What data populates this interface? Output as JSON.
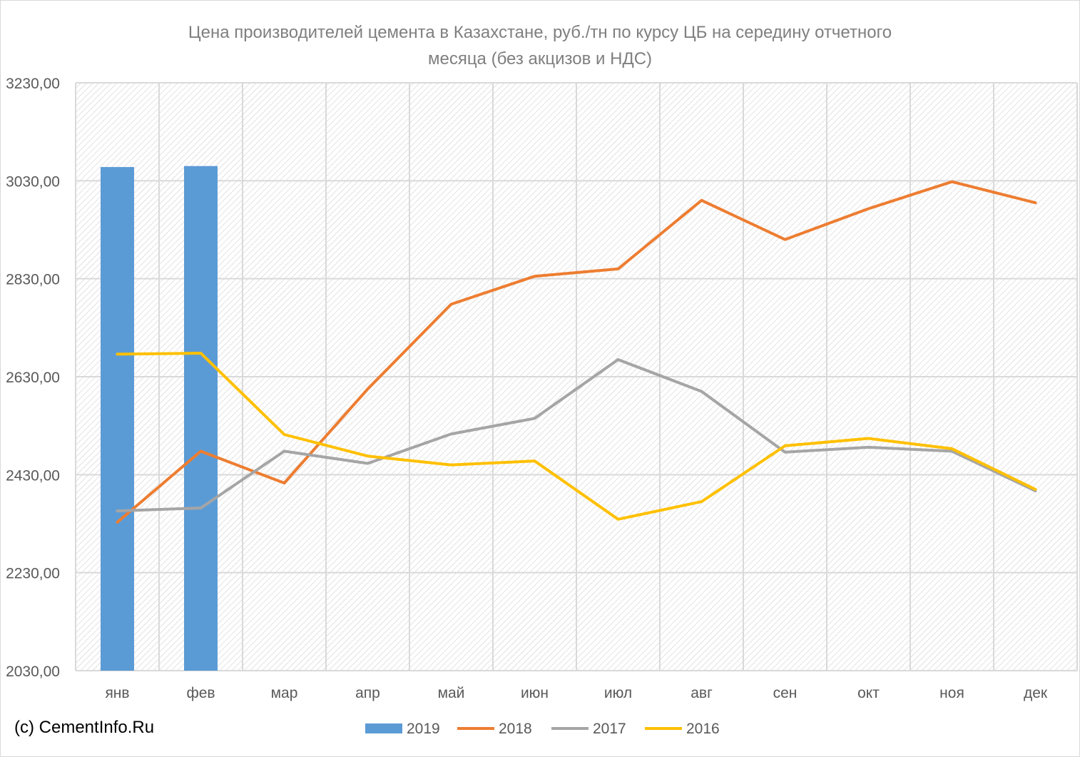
{
  "chart_data": {
    "type": "bar+line",
    "title_line1": "Цена производителей цемента в Казахстане, руб./тн по курсу ЦБ на середину отчетного",
    "title_line2": "месяца (без акцизов и НДС)",
    "categories": [
      "янв",
      "фев",
      "мар",
      "апр",
      "май",
      "июн",
      "июл",
      "авг",
      "сен",
      "окт",
      "ноя",
      "дек"
    ],
    "ylim": [
      2030,
      3230
    ],
    "yticks": [
      "3230,00",
      "3030,00",
      "2830,00",
      "2630,00",
      "2430,00",
      "2230,00",
      "2030,00"
    ],
    "ytick_values": [
      3230,
      3030,
      2830,
      2630,
      2430,
      2230,
      2030
    ],
    "grid": true,
    "legend_position": "bottom",
    "series": [
      {
        "name": "2019",
        "kind": "bar",
        "color": "#5b9bd5",
        "values": [
          3058,
          3060,
          null,
          null,
          null,
          null,
          null,
          null,
          null,
          null,
          null,
          null
        ]
      },
      {
        "name": "2018",
        "kind": "line",
        "color": "#ed7d31",
        "values": [
          2333,
          2478,
          2413,
          2605,
          2778,
          2835,
          2850,
          2990,
          2910,
          2973,
          3028,
          2985
        ]
      },
      {
        "name": "2017",
        "kind": "line",
        "color": "#a5a5a5",
        "values": [
          2356,
          2362,
          2478,
          2453,
          2513,
          2545,
          2665,
          2600,
          2476,
          2486,
          2478,
          2397
        ]
      },
      {
        "name": "2016",
        "kind": "line",
        "color": "#ffc000",
        "values": [
          2676,
          2678,
          2512,
          2468,
          2450,
          2458,
          2339,
          2375,
          2489,
          2504,
          2483,
          2400
        ]
      }
    ]
  },
  "copyright": "(c) CementInfo.Ru"
}
